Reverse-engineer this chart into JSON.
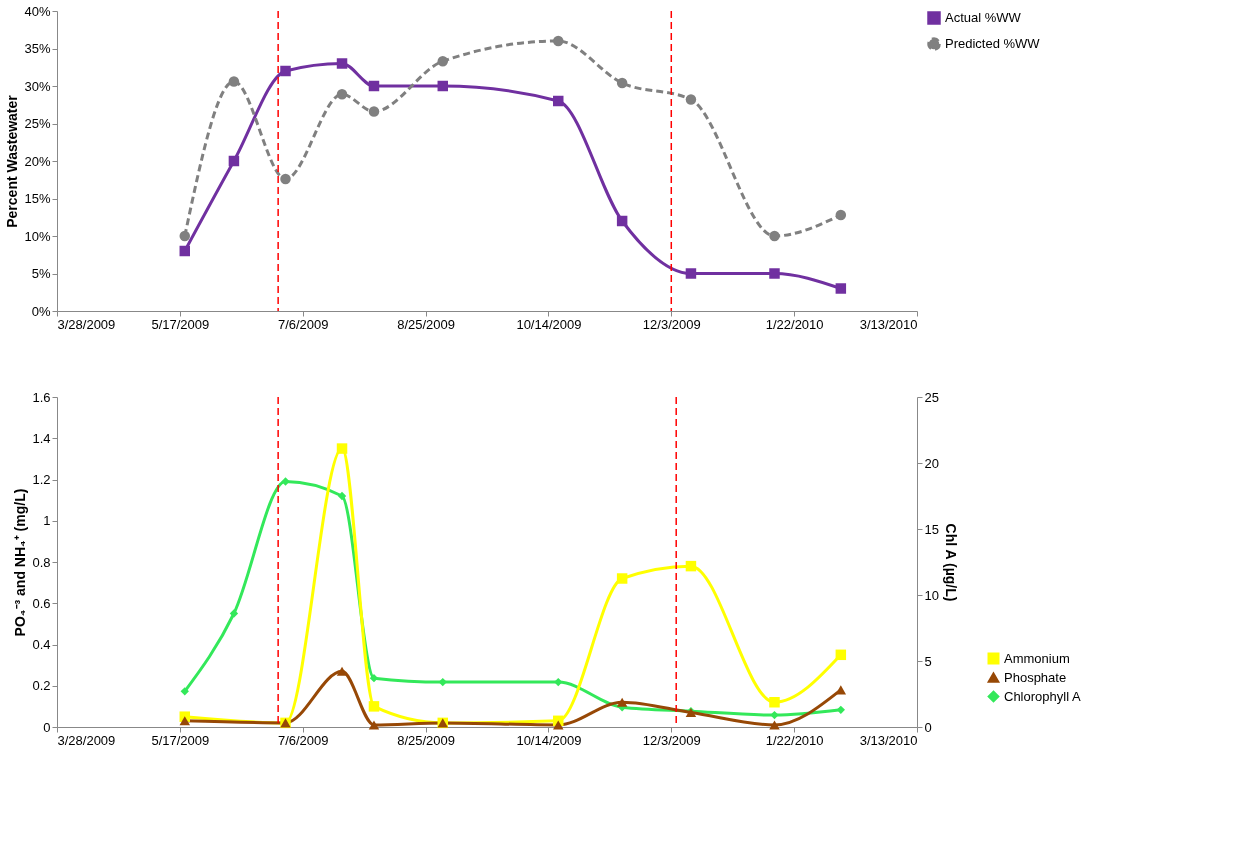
{
  "chart_data": [
    {
      "type": "line",
      "ylabel": "Percent Wastewater",
      "x": [
        "2009-05-19",
        "2009-06-08",
        "2009-06-29",
        "2009-07-22",
        "2009-08-04",
        "2009-09-01",
        "2009-10-18",
        "2009-11-13",
        "2009-12-11",
        "2010-01-14",
        "2010-02-10"
      ],
      "series": [
        {
          "name": "Actual %WW",
          "color": "#7030a0",
          "marker": "square",
          "line_style": "solid",
          "values": [
            8,
            20,
            32,
            33,
            30,
            30,
            28,
            12,
            5,
            5,
            3
          ]
        },
        {
          "name": "Predicted %WW",
          "color": "#808080",
          "marker": "circle",
          "line_style": "dashed",
          "values": [
            10,
            30.6,
            17.6,
            28.9,
            26.6,
            33.3,
            36,
            30.4,
            28.2,
            10,
            12.8
          ]
        }
      ],
      "xlim": [
        "2009-03-28",
        "2010-03-13"
      ],
      "xticks": [
        {
          "value": "2009-03-28",
          "label": "3/28/2009"
        },
        {
          "value": "2009-05-17",
          "label": "5/17/2009"
        },
        {
          "value": "2009-07-06",
          "label": "7/6/2009"
        },
        {
          "value": "2009-08-25",
          "label": "8/25/2009"
        },
        {
          "value": "2009-10-14",
          "label": "10/14/2009"
        },
        {
          "value": "2009-12-03",
          "label": "12/3/2009"
        },
        {
          "value": "2010-01-22",
          "label": "1/22/2010"
        },
        {
          "value": "2010-03-13",
          "label": "3/13/2010"
        }
      ],
      "ylim": [
        0,
        40
      ],
      "yticks": [
        {
          "value": 0,
          "label": "0%"
        },
        {
          "value": 5,
          "label": "5%"
        },
        {
          "value": 10,
          "label": "10%"
        },
        {
          "value": 15,
          "label": "15%"
        },
        {
          "value": 20,
          "label": "20%"
        },
        {
          "value": 25,
          "label": "25%"
        },
        {
          "value": 30,
          "label": "30%"
        },
        {
          "value": 35,
          "label": "35%"
        },
        {
          "value": 40,
          "label": "40%"
        }
      ],
      "ref_lines": [
        {
          "axis": "x",
          "value": "2009-06-26",
          "color": "#ff0000",
          "line_style": "dashed"
        },
        {
          "axis": "x",
          "value": "2009-12-03",
          "color": "#ff0000",
          "line_style": "dashed"
        }
      ],
      "grid": false,
      "legend": "right"
    },
    {
      "type": "line",
      "ylabel": "PO₄⁻³ and NH₄⁺ (mg/L)",
      "y2label": "Chl A (µg/L)",
      "series": [
        {
          "name": "Ammonium",
          "color": "#ffff00",
          "marker": "square",
          "line_style": "solid",
          "x": [
            "2009-05-19",
            "2009-06-29",
            "2009-07-22",
            "2009-08-04",
            "2009-09-01",
            "2009-10-18",
            "2009-11-13",
            "2009-12-11",
            "2010-01-14",
            "2010-02-10"
          ],
          "values": [
            0.05,
            0.02,
            1.35,
            0.1,
            0.02,
            0.03,
            0.72,
            0.78,
            0.12,
            0.35
          ]
        },
        {
          "name": "Phosphate",
          "color": "#974806",
          "marker": "triangle",
          "line_style": "solid",
          "x": [
            "2009-05-19",
            "2009-06-29",
            "2009-07-22",
            "2009-08-04",
            "2009-09-01",
            "2009-10-18",
            "2009-11-13",
            "2009-12-11",
            "2010-01-14",
            "2010-02-10"
          ],
          "values": [
            0.03,
            0.02,
            0.27,
            0.01,
            0.02,
            0.01,
            0.12,
            0.07,
            0.01,
            0.18
          ]
        },
        {
          "name": "Chlorophyll A",
          "color": "#33e85a",
          "marker": "diamond",
          "line_style": "solid",
          "axis": "y2",
          "x": [
            "2009-05-19",
            "2009-06-08",
            "2009-06-29",
            "2009-07-22",
            "2009-08-04",
            "2009-09-01",
            "2009-10-18",
            "2009-11-13",
            "2009-12-11",
            "2010-01-14",
            "2010-02-10"
          ],
          "values": [
            2.7,
            8.6,
            18.6,
            17.5,
            3.7,
            3.4,
            3.4,
            1.5,
            1.2,
            0.9,
            1.3
          ]
        }
      ],
      "xlim": [
        "2009-03-28",
        "2010-03-13"
      ],
      "xticks": [
        {
          "value": "2009-03-28",
          "label": "3/28/2009"
        },
        {
          "value": "2009-05-17",
          "label": "5/17/2009"
        },
        {
          "value": "2009-07-06",
          "label": "7/6/2009"
        },
        {
          "value": "2009-08-25",
          "label": "8/25/2009"
        },
        {
          "value": "2009-10-14",
          "label": "10/14/2009"
        },
        {
          "value": "2009-12-03",
          "label": "12/3/2009"
        },
        {
          "value": "2010-01-22",
          "label": "1/22/2010"
        },
        {
          "value": "2010-03-13",
          "label": "3/13/2010"
        }
      ],
      "ylim": [
        0,
        1.6
      ],
      "yticks": [
        0,
        0.2,
        0.4,
        0.6,
        0.8,
        1,
        1.2,
        1.4,
        1.6
      ],
      "y2lim": [
        0,
        25
      ],
      "y2ticks": [
        0,
        5,
        10,
        15,
        20,
        25
      ],
      "ref_lines": [
        {
          "axis": "x",
          "value": "2009-06-26",
          "color": "#ff0000",
          "line_style": "dashed"
        },
        {
          "axis": "x",
          "value": "2009-12-05",
          "color": "#ff0000",
          "line_style": "dashed"
        }
      ],
      "grid": false,
      "legend": "bottom right"
    }
  ]
}
